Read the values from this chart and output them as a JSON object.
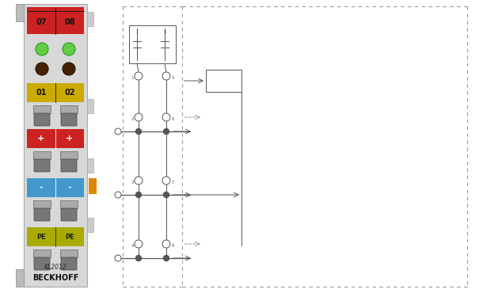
{
  "bg_color": "#ffffff",
  "lc": "#555555",
  "dc": "#999999",
  "term_facecolor": "#d8d8d8",
  "term_edge": "#aaaaaa",
  "clip_color": "#bbbbbb",
  "red1": "#cc2222",
  "red2": "#cc2222",
  "yellow_led": "#66cc44",
  "brown_led": "#442200",
  "yellow_label": "#ccaa00",
  "blue_label": "#4499cc",
  "orange_tab": "#dd8800",
  "pe_color": "#aaaa00",
  "title_text": "KL2012",
  "subtitle_text": "BECKHOFF",
  "label_07": "07",
  "label_08": "08",
  "label_01": "01",
  "label_02": "02",
  "label_plus": "+",
  "label_minus": "-",
  "label_pe": "PE"
}
